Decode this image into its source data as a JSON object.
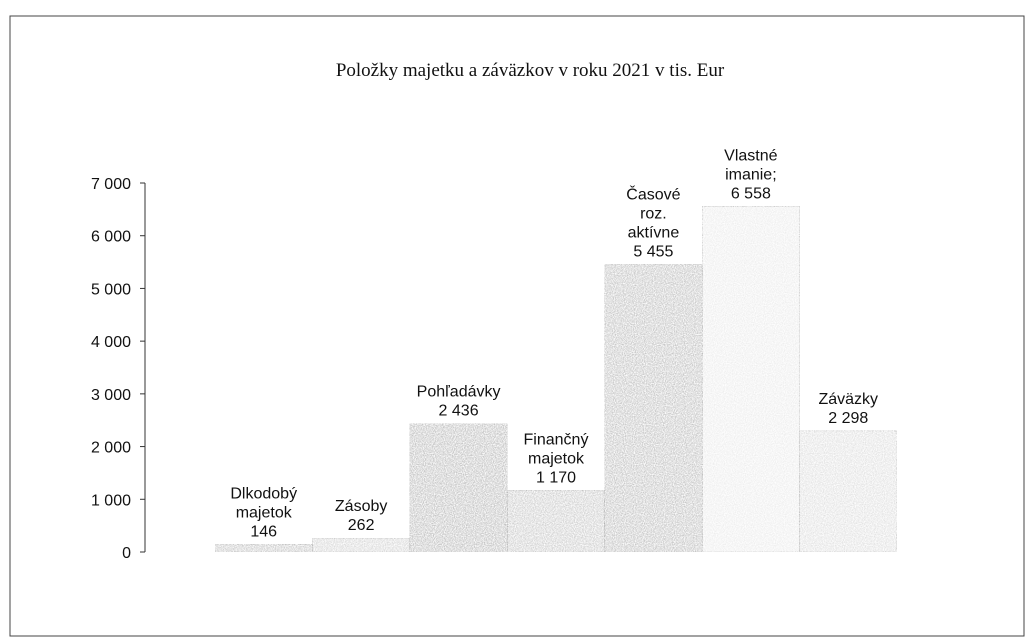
{
  "chart_data": {
    "type": "bar",
    "title": "Položky majetku  a záväzkov v roku 2021 v tis. Eur",
    "categories": [
      [
        "Dlkodobý",
        "majetok"
      ],
      [
        "Zásoby"
      ],
      [
        "Pohľadávky"
      ],
      [
        "Finančný",
        "majetok"
      ],
      [
        "Časové",
        "roz.",
        "aktívne"
      ],
      [
        "Vlastné",
        "imanie;"
      ],
      [
        "Záväzky"
      ]
    ],
    "values": [
      146,
      262,
      2436,
      1170,
      5455,
      6558,
      2298
    ],
    "value_labels": [
      "146",
      "262",
      "2 436",
      "1 170",
      "5 455",
      "6 558",
      "2 298"
    ],
    "colors": [
      "#a9a9a9",
      "#c0c0c0",
      "#9a9a9a",
      "#b0b0b0",
      "#a0a0a0",
      "#e2e2e2",
      "#cfcfcf"
    ],
    "ylim": [
      0,
      7000
    ],
    "yticks": [
      0,
      {
        "value": 1000,
        "label": "1 000"
      },
      {
        "value": 2000,
        "label": "2 000"
      },
      {
        "value": 3000,
        "label": "3 000"
      },
      {
        "value": 4000,
        "label": "4 000"
      },
      {
        "value": 5000,
        "label": "5 000"
      },
      {
        "value": 6000,
        "label": "6 000"
      },
      {
        "value": 7000,
        "label": "7 000"
      }
    ]
  }
}
